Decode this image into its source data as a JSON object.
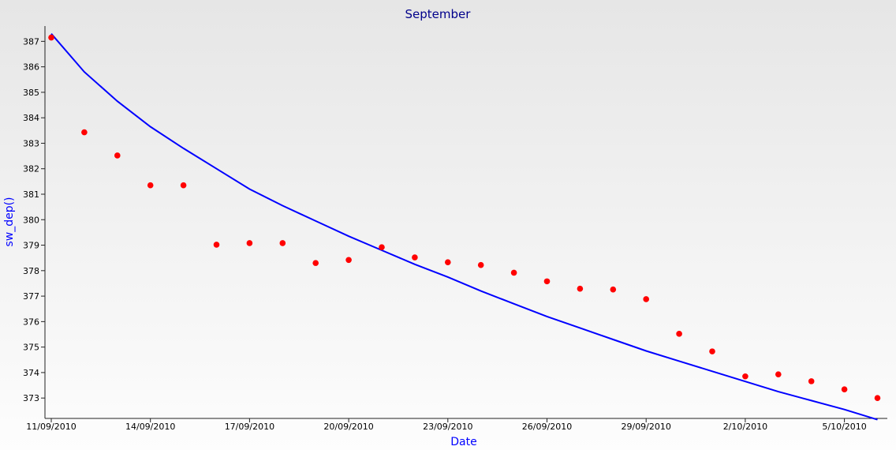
{
  "chart_data": {
    "type": "line",
    "title": "September",
    "xlabel": "Date",
    "ylabel": "sw_dep()",
    "xlim": [
      "2010-09-11",
      "2010-10-07"
    ],
    "ylim": [
      372.2,
      387.6
    ],
    "x_ticks": [
      "11/09/2010",
      "14/09/2010",
      "17/09/2010",
      "20/09/2010",
      "23/09/2010",
      "26/09/2010",
      "29/09/2010",
      "2/10/2010",
      "5/10/2010"
    ],
    "y_ticks": [
      373,
      374,
      375,
      376,
      377,
      378,
      379,
      380,
      381,
      382,
      383,
      384,
      385,
      386,
      387
    ],
    "grid": false,
    "series": [
      {
        "style": "line",
        "color": "#0000ff",
        "x": [
          "2010-09-11",
          "2010-09-12",
          "2010-09-13",
          "2010-09-14",
          "2010-09-15",
          "2010-09-16",
          "2010-09-17",
          "2010-09-18",
          "2010-09-19",
          "2010-09-20",
          "2010-09-21",
          "2010-09-22",
          "2010-09-23",
          "2010-09-24",
          "2010-09-25",
          "2010-09-26",
          "2010-09-27",
          "2010-09-28",
          "2010-09-29",
          "2010-09-30",
          "2010-10-01",
          "2010-10-02",
          "2010-10-03",
          "2010-10-04",
          "2010-10-05",
          "2010-10-06"
        ],
        "y": [
          387.3,
          385.8,
          384.65,
          383.65,
          382.8,
          382.0,
          381.2,
          380.55,
          379.95,
          379.35,
          378.8,
          378.25,
          377.75,
          377.2,
          376.7,
          376.2,
          375.75,
          375.3,
          374.85,
          374.45,
          374.05,
          373.65,
          373.25,
          372.9,
          372.55,
          372.15
        ]
      },
      {
        "style": "scatter",
        "color": "#ff0000",
        "x": [
          "2010-09-11",
          "2010-09-12",
          "2010-09-13",
          "2010-09-14",
          "2010-09-15",
          "2010-09-16",
          "2010-09-17",
          "2010-09-18",
          "2010-09-19",
          "2010-09-20",
          "2010-09-21",
          "2010-09-22",
          "2010-09-23",
          "2010-09-24",
          "2010-09-25",
          "2010-09-26",
          "2010-09-27",
          "2010-09-28",
          "2010-09-29",
          "2010-09-30",
          "2010-10-01",
          "2010-10-02",
          "2010-10-03",
          "2010-10-04",
          "2010-10-05",
          "2010-10-06"
        ],
        "y": [
          387.15,
          383.43,
          382.52,
          381.35,
          381.35,
          379.02,
          379.08,
          379.08,
          378.3,
          378.42,
          378.92,
          378.52,
          378.33,
          378.22,
          377.92,
          377.58,
          377.29,
          377.26,
          376.88,
          375.52,
          374.83,
          373.85,
          373.93,
          373.66,
          373.34,
          373.0
        ]
      }
    ]
  }
}
